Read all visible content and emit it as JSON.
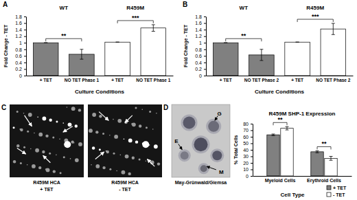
{
  "chart_data": [
    {
      "type": "bar",
      "x_label": "Culture Conditions",
      "y_label": "Fold Change - TET",
      "categories": [
        "+ TET",
        "NO TET Phase 1",
        "+ TET",
        "NO TET Phase 1"
      ],
      "values": [
        1,
        0.65,
        1.02,
        1.45
      ],
      "errors": [
        0,
        0.15,
        0,
        0.1
      ],
      "colors": [
        "#808080",
        "#808080",
        "#ffffff",
        "#ffffff"
      ],
      "ylim": [
        0,
        1.8
      ],
      "yticks": [
        0,
        0.2,
        0.4,
        0.6,
        0.8,
        1,
        1.2,
        1.4,
        1.6,
        1.8
      ],
      "grid": false,
      "annotations": [
        "A",
        "WT",
        "R459M",
        "**",
        "***"
      ]
    },
    {
      "type": "bar",
      "x_label": "Culture Conditions",
      "y_label": "Fold Change - TET",
      "categories": [
        "+ TET",
        "NO TET Phase 2",
        "+ TET",
        "NO TET Phase 2"
      ],
      "values": [
        1,
        0.63,
        1.02,
        1.42
      ],
      "errors": [
        0,
        0.17,
        0,
        0.17
      ],
      "colors": [
        "#808080",
        "#808080",
        "#ffffff",
        "#ffffff"
      ],
      "ylim": [
        0,
        1.8
      ],
      "yticks": [
        0,
        0.2,
        0.4,
        0.6,
        0.8,
        1,
        1.2,
        1.4,
        1.6,
        1.8
      ],
      "grid": false,
      "annotations": [
        "B",
        "WT",
        "R459M",
        "**",
        "***"
      ]
    },
    {
      "type": "bar",
      "title": "R459M SHP-1 Expression",
      "x_label": "Cell Type",
      "y_label": "% Total Cells",
      "categories": [
        "Myeloid Cells",
        "Erythroid Cells"
      ],
      "series": [
        {
          "name": "+ TET",
          "color": "#808080",
          "values": [
            63,
            37
          ],
          "errors": [
            1.2,
            1.5
          ]
        },
        {
          "name": "- TET",
          "color": "#ffffff",
          "values": [
            73,
            27
          ],
          "errors": [
            2.5,
            3
          ]
        }
      ],
      "ylim": [
        0,
        80
      ],
      "yticks": [
        0,
        10,
        20,
        30,
        40,
        50,
        60,
        70,
        80
      ],
      "grid": false,
      "legend": "bottom-right",
      "annotations": [
        "**",
        "**"
      ]
    }
  ],
  "images": [
    {
      "panel": "C",
      "caption": [
        "R459M HCA",
        "+ TET"
      ]
    },
    {
      "caption": [
        "R459M HCA",
        "- TET"
      ]
    },
    {
      "panel": "D",
      "caption": [
        "May-Grünwald/Giemsa"
      ],
      "labels": [
        "G",
        "E",
        "M"
      ]
    }
  ]
}
